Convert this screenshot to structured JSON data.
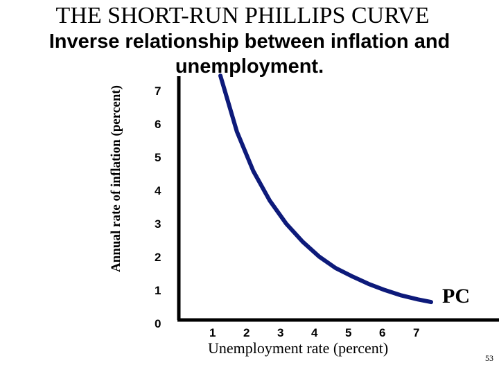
{
  "slide": {
    "title": "THE SHORT-RUN PHILLIPS CURVE",
    "subtitle": "Inverse relationship between inflation and unemployment.",
    "page_number": "53"
  },
  "chart_data": {
    "type": "line",
    "title": "THE SHORT-RUN PHILLIPS CURVE",
    "xlabel": "Unemployment rate (percent)",
    "ylabel": "Annual rate of inflation (percent)",
    "x_ticks": [
      "1",
      "2",
      "3",
      "4",
      "5",
      "6",
      "7"
    ],
    "y_ticks": [
      "0",
      "1",
      "2",
      "3",
      "4",
      "5",
      "6",
      "7"
    ],
    "xlim": [
      0,
      7.6
    ],
    "ylim": [
      0,
      7.3
    ],
    "grid": false,
    "series": [
      {
        "name": "PC",
        "color": "#0d1a7a",
        "x": [
          1.0,
          1.5,
          2.0,
          2.5,
          3.0,
          3.5,
          4.0,
          4.5,
          5.0,
          5.5,
          6.0,
          6.5,
          7.0,
          7.4
        ],
        "y": [
          7.3,
          5.6,
          4.4,
          3.5,
          2.8,
          2.25,
          1.8,
          1.45,
          1.2,
          0.97,
          0.78,
          0.62,
          0.5,
          0.42
        ]
      }
    ]
  }
}
